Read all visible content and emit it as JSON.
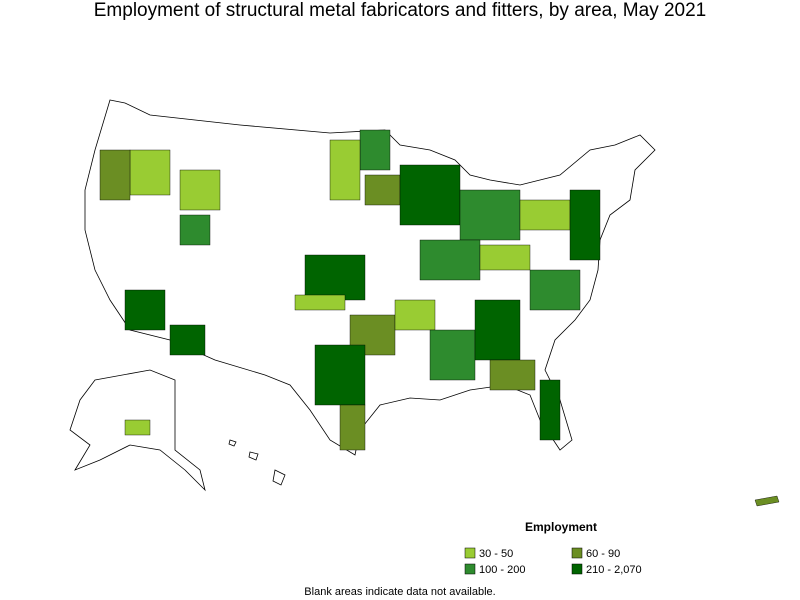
{
  "title": "Employment of structural metal fabricators and fitters, by area, May 2021",
  "legend": {
    "title": "Employment",
    "items": [
      {
        "label": "30 - 50",
        "color": "#99cc33"
      },
      {
        "label": "60 - 90",
        "color": "#6b8e23"
      },
      {
        "label": "100 - 200",
        "color": "#2e8b2e"
      },
      {
        "label": "210 - 2,070",
        "color": "#006400"
      }
    ]
  },
  "footnote": "Blank areas indicate data not available."
}
